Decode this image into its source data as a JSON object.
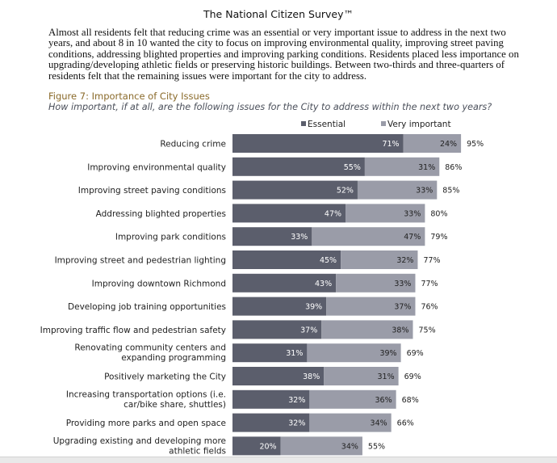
{
  "header": {
    "title": "The National Citizen Survey™"
  },
  "intro": {
    "text": "Almost all residents felt that reducing crime was an essential or very important issue to address in the next two years, and about 8 in 10 wanted the city to focus on improving environmental quality, improving street paving conditions, addressing blighted properties and improving parking conditions. Residents placed less importance on upgrading/developing athletic fields or preserving historic buildings. Between two-thirds and three-quarters of residents felt that the remaining issues were important for the city to address."
  },
  "figure": {
    "title": "Figure 7: Importance of City Issues",
    "subtitle": "How important, if at all, are the following issues for the City to address within the next two years?"
  },
  "colors": {
    "essential": "#5b5e6c",
    "very_important": "#9a9ca8",
    "title": "#8a6a2a"
  },
  "chart_data": {
    "type": "bar",
    "orientation": "horizontal",
    "stacked": true,
    "legend_position": "top",
    "grid": false,
    "xlim": [
      0,
      100
    ],
    "categories": [
      [
        "Reducing crime"
      ],
      [
        "Improving environmental quality"
      ],
      [
        "Improving street paving conditions"
      ],
      [
        "Addressing blighted properties"
      ],
      [
        "Improving park conditions"
      ],
      [
        "Improving street and pedestrian lighting"
      ],
      [
        "Improving downtown Richmond"
      ],
      [
        "Developing job training opportunities"
      ],
      [
        "Improving traffic flow and pedestrian safety"
      ],
      [
        "Renovating community centers and",
        "expanding programming"
      ],
      [
        "Positively marketing the City"
      ],
      [
        "Increasing transportation options (i.e.",
        "car/bike share, shuttles)"
      ],
      [
        "Providing more parks and open space"
      ],
      [
        "Upgrading existing and developing more",
        "athletic fields"
      ]
    ],
    "series": [
      {
        "name": "Essential",
        "values": [
          71,
          55,
          52,
          47,
          33,
          45,
          43,
          39,
          37,
          31,
          38,
          32,
          32,
          20
        ],
        "labels": [
          "71%",
          "55%",
          "52%",
          "47%",
          "33%",
          "45%",
          "43%",
          "39%",
          "37%",
          "31%",
          "38%",
          "32%",
          "32%",
          "20%"
        ]
      },
      {
        "name": "Very important",
        "values": [
          24,
          31,
          33,
          33,
          47,
          32,
          33,
          37,
          38,
          39,
          31,
          36,
          34,
          34
        ],
        "labels": [
          "24%",
          "31%",
          "33%",
          "33%",
          "47%",
          "32%",
          "33%",
          "37%",
          "38%",
          "39%",
          "31%",
          "36%",
          "34%",
          "34%"
        ]
      }
    ],
    "totals": [
      95,
      86,
      85,
      80,
      79,
      77,
      77,
      76,
      75,
      69,
      69,
      68,
      66,
      55
    ],
    "total_labels": [
      "95%",
      "86%",
      "85%",
      "80%",
      "79%",
      "77%",
      "77%",
      "76%",
      "75%",
      "69%",
      "69%",
      "68%",
      "66%",
      "55%"
    ]
  }
}
